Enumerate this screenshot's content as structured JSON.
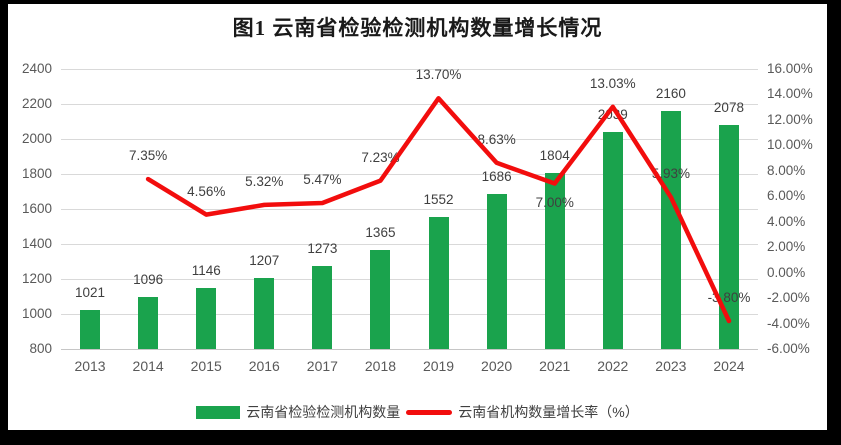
{
  "title": "图1 云南省检验检测机构数量增长情况",
  "legend": {
    "bar_label": "云南省检验检测机构数量",
    "line_label": "云南省机构数量增长率（%）"
  },
  "colors": {
    "bar": "#1aa34d",
    "line": "#f20d0d",
    "grid": "#d9d9d9",
    "axis_text": "#595959",
    "data_label": "#3f3f3f",
    "frame": "#000000",
    "background": "#ffffff"
  },
  "chart_data": {
    "type": "combo-bar-line",
    "title": "图1 云南省检验检测机构数量增长情况",
    "categories": [
      "2013",
      "2014",
      "2015",
      "2016",
      "2017",
      "2018",
      "2019",
      "2020",
      "2021",
      "2022",
      "2023",
      "2024"
    ],
    "series": [
      {
        "name": "云南省检验检测机构数量",
        "type": "bar",
        "axis": "left",
        "values": [
          1021,
          1096,
          1146,
          1207,
          1273,
          1365,
          1552,
          1686,
          1804,
          2039,
          2160,
          2078
        ],
        "value_labels": [
          "1021",
          "1096",
          "1146",
          "1207",
          "1273",
          "1365",
          "1552",
          "1686",
          "1804",
          "2039",
          "2160",
          "2078"
        ]
      },
      {
        "name": "云南省机构数量增长率（%）",
        "type": "line",
        "axis": "right",
        "values": [
          null,
          7.35,
          4.56,
          5.32,
          5.47,
          7.23,
          13.7,
          8.63,
          7.0,
          13.03,
          5.93,
          -3.8
        ],
        "value_labels": [
          "",
          "7.35%",
          "4.56%",
          "5.32%",
          "5.47%",
          "7.23%",
          "13.70%",
          "8.63%",
          "7.00%",
          "13.03%",
          "5.93%",
          "-3.80%"
        ],
        "labels_below_categories": [
          "2021"
        ]
      }
    ],
    "left_axis": {
      "min": 800,
      "max": 2400,
      "step": 200,
      "ticks": [
        "2400",
        "2200",
        "2000",
        "1800",
        "1600",
        "1400",
        "1200",
        "1000",
        "800"
      ]
    },
    "right_axis": {
      "min": -6,
      "max": 16,
      "step": 2,
      "ticks": [
        "16.00%",
        "14.00%",
        "12.00%",
        "10.00%",
        "8.00%",
        "6.00%",
        "4.00%",
        "2.00%",
        "0.00%",
        "-2.00%",
        "-4.00%",
        "-6.00%"
      ]
    },
    "grid": "horizontal",
    "legend_position": "bottom"
  }
}
